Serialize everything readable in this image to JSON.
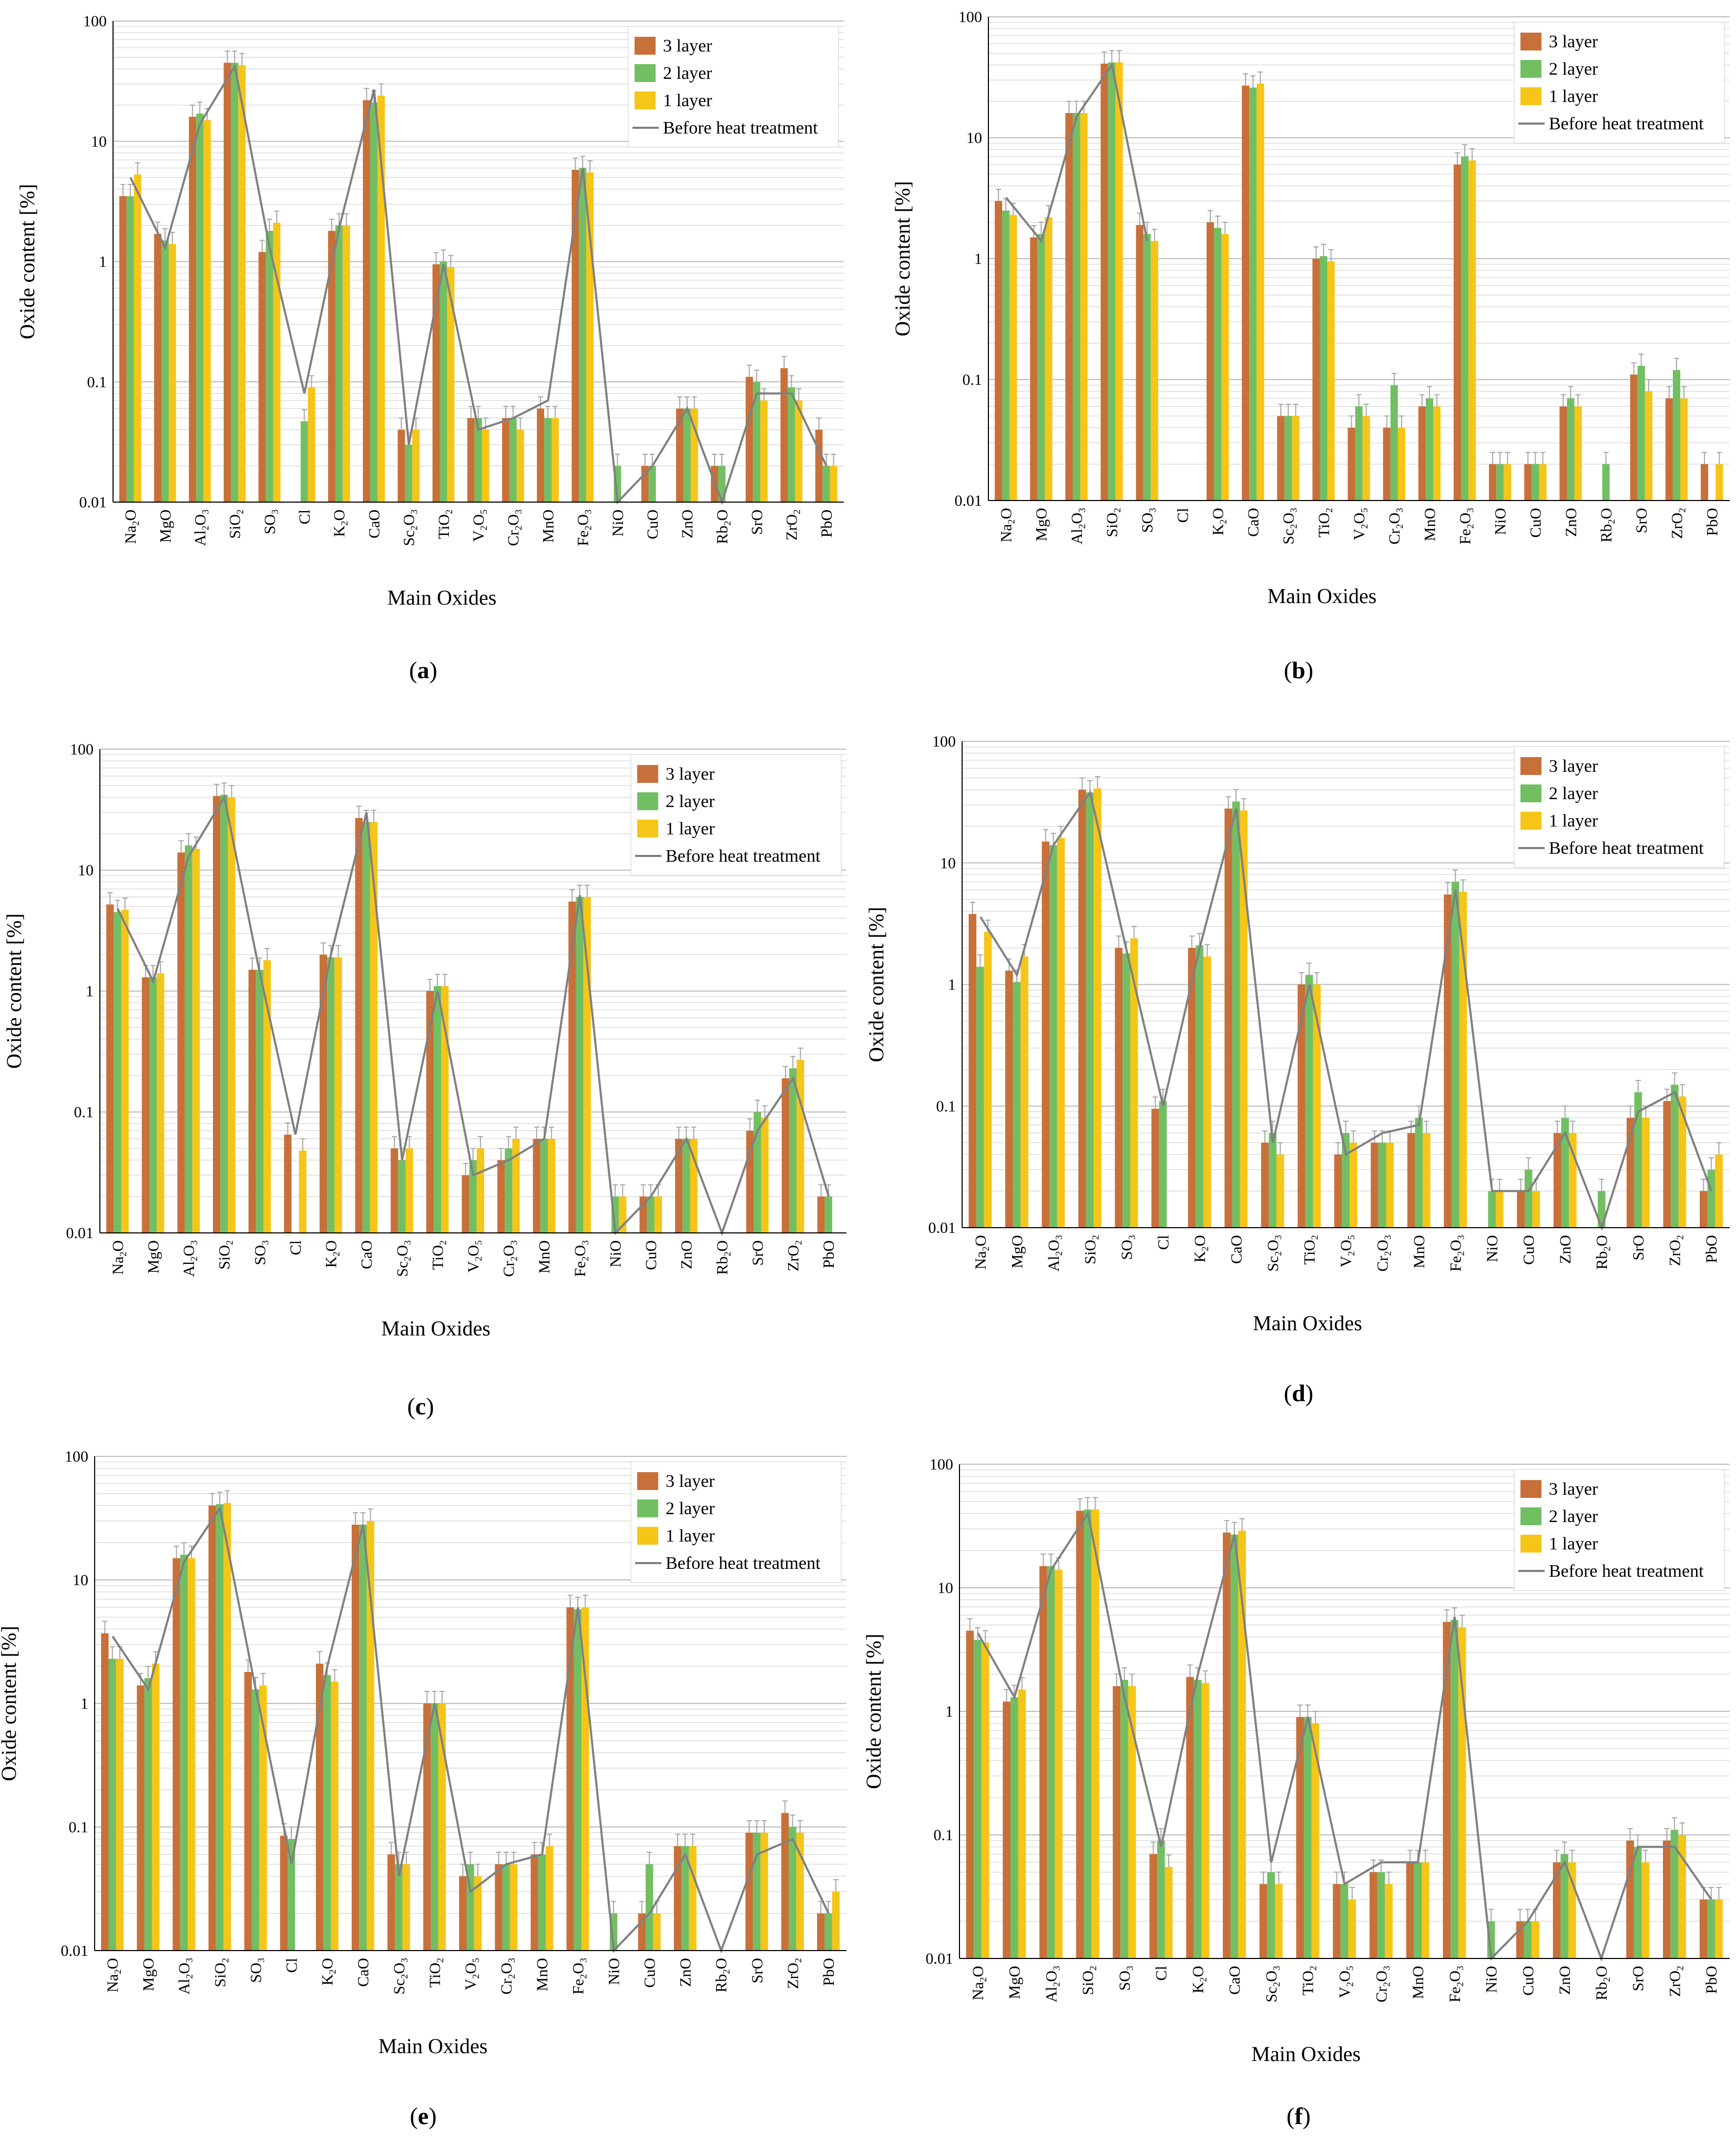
{
  "figure": {
    "panels": [
      {
        "id": "a",
        "label": "(a)",
        "letter": "a"
      },
      {
        "id": "b",
        "label": "(b)",
        "letter": "b"
      },
      {
        "id": "c",
        "label": "(c)",
        "letter": "c"
      },
      {
        "id": "d",
        "label": "(d)",
        "letter": "d"
      },
      {
        "id": "e",
        "label": "(e)",
        "letter": "e"
      },
      {
        "id": "f",
        "label": "(f)",
        "letter": "f"
      }
    ]
  },
  "colors": {
    "layer3": "#c8703a",
    "layer2": "#72bf63",
    "layer1": "#f5c518",
    "line": "#808080",
    "error": "#a6a6a6",
    "grid": "#dcdcdc"
  },
  "chart_data": [
    {
      "panel": "a",
      "type": "bar",
      "log_scale": true,
      "xlabel": "Main Oxides",
      "ylabel": "Oxide content [%]",
      "ylim": [
        0.01,
        100
      ],
      "y_ticks": [
        "0.01",
        "0.1",
        "1",
        "10",
        "100"
      ],
      "categories": [
        "Na2O",
        "MgO",
        "Al2O3",
        "SiO2",
        "SO3",
        "Cl",
        "K2O",
        "CaO",
        "Sc2O3",
        "TiO2",
        "V2O5",
        "Cr2O3",
        "MnO",
        "Fe2O3",
        "NiO",
        "CuO",
        "ZnO",
        "Rb2O",
        "SrO",
        "ZrO2",
        "PbO"
      ],
      "legend": [
        "3 layer",
        "2 layer",
        "1 layer",
        "Before heat treatment"
      ],
      "series": [
        {
          "name": "3 layer",
          "values": [
            3.5,
            1.7,
            16,
            45,
            1.2,
            null,
            1.8,
            22,
            0.04,
            0.95,
            0.05,
            0.05,
            0.06,
            5.8,
            null,
            0.02,
            0.06,
            0.02,
            0.11,
            0.13,
            0.04
          ]
        },
        {
          "name": "2 layer",
          "values": [
            3.5,
            1.5,
            17,
            45,
            1.8,
            0.047,
            2.0,
            21,
            0.03,
            1.0,
            0.05,
            0.05,
            0.05,
            6.0,
            0.02,
            0.02,
            0.06,
            0.02,
            0.1,
            0.09,
            0.02
          ]
        },
        {
          "name": "1 layer",
          "values": [
            5.3,
            1.4,
            15,
            43,
            2.1,
            0.09,
            2.0,
            24,
            0.04,
            0.9,
            0.04,
            0.04,
            0.05,
            5.5,
            null,
            null,
            0.06,
            null,
            0.07,
            0.07,
            0.02
          ]
        },
        {
          "name": "Before heat treatment",
          "values": [
            5.0,
            1.3,
            14,
            42,
            1.3,
            0.08,
            1.9,
            27,
            0.03,
            0.95,
            0.04,
            0.05,
            0.07,
            6.0,
            0.01,
            0.02,
            0.06,
            0.01,
            0.08,
            0.08,
            0.02
          ]
        }
      ]
    },
    {
      "panel": "b",
      "type": "bar",
      "log_scale": true,
      "xlabel": "Main Oxides",
      "ylabel": "Oxide content [%]",
      "ylim": [
        0.01,
        100
      ],
      "y_ticks": [
        "0.01",
        "0.1",
        "1",
        "10",
        "100"
      ],
      "categories": [
        "Na2O",
        "MgO",
        "Al2O3",
        "SiO2",
        "SO3",
        "Cl",
        "K2O",
        "CaO",
        "Sc2O3",
        "TiO2",
        "V2O5",
        "Cr2O3",
        "MnO",
        "Fe2O3",
        "NiO",
        "CuO",
        "ZnO",
        "Rb2O",
        "SrO",
        "ZrO2",
        "PbO"
      ],
      "legend": [
        "3 layer",
        "2 layer",
        "1 layer",
        "Before heat treatment"
      ],
      "series": [
        {
          "name": "3 layer",
          "values": [
            3.0,
            1.5,
            16,
            41,
            1.9,
            null,
            2.0,
            27,
            0.05,
            1.0,
            0.04,
            0.04,
            0.06,
            6.0,
            0.02,
            0.02,
            0.06,
            null,
            0.11,
            0.07,
            0.02
          ]
        },
        {
          "name": "2 layer",
          "values": [
            2.5,
            1.6,
            16,
            42,
            1.6,
            null,
            1.8,
            26,
            0.05,
            1.05,
            0.06,
            0.09,
            0.07,
            7.0,
            0.02,
            0.02,
            0.07,
            0.02,
            0.13,
            0.12,
            null
          ]
        },
        {
          "name": "1 layer",
          "values": [
            2.3,
            2.2,
            16,
            42,
            1.4,
            null,
            1.6,
            28,
            0.05,
            0.95,
            0.05,
            0.04,
            0.06,
            6.5,
            0.02,
            0.02,
            0.06,
            null,
            0.08,
            0.07,
            0.02
          ]
        },
        {
          "name": "Before heat treatment",
          "values": [
            3.2,
            1.4,
            15,
            40,
            1.4,
            null,
            2.0,
            30,
            0.06,
            1.0,
            0.04,
            0.04,
            0.06,
            6.0,
            0.01,
            0.02,
            0.06,
            0.01,
            0.08,
            0.08,
            0.02
          ]
        }
      ]
    },
    {
      "panel": "c",
      "type": "bar",
      "log_scale": true,
      "xlabel": "Main Oxides",
      "ylabel": "Oxide content [%]",
      "ylim": [
        0.01,
        100
      ],
      "y_ticks": [
        "0.01",
        "0.1",
        "1",
        "10",
        "100"
      ],
      "categories": [
        "Na2O",
        "MgO",
        "Al2O3",
        "SiO2",
        "SO3",
        "Cl",
        "K2O",
        "CaO",
        "Sc2O3",
        "TiO2",
        "V2O5",
        "Cr2O3",
        "MnO",
        "Fe2O3",
        "NiO",
        "CuO",
        "ZnO",
        "Rb2O",
        "SrO",
        "ZrO2",
        "PbO"
      ],
      "legend": [
        "3 layer",
        "2 layer",
        "1 layer",
        "Before heat treatment"
      ],
      "series": [
        {
          "name": "3 layer",
          "values": [
            5.2,
            1.3,
            14,
            41,
            1.5,
            0.065,
            2.0,
            27,
            0.05,
            1.0,
            0.03,
            0.04,
            0.06,
            5.5,
            null,
            0.02,
            0.06,
            null,
            0.07,
            0.19,
            0.02
          ]
        },
        {
          "name": "2 layer",
          "values": [
            4.5,
            1.3,
            16,
            42,
            1.5,
            null,
            1.9,
            25,
            0.04,
            1.1,
            0.04,
            0.05,
            0.06,
            6.0,
            0.02,
            0.02,
            0.06,
            null,
            0.1,
            0.23,
            0.02
          ]
        },
        {
          "name": "1 layer",
          "values": [
            4.7,
            1.4,
            15,
            40,
            1.8,
            0.048,
            1.9,
            25,
            0.05,
            1.1,
            0.05,
            0.06,
            0.06,
            6.0,
            0.02,
            0.02,
            0.06,
            null,
            0.09,
            0.27,
            null
          ]
        },
        {
          "name": "Before heat treatment",
          "values": [
            4.8,
            1.2,
            13,
            40,
            1.4,
            0.065,
            2.0,
            30,
            0.04,
            1.0,
            0.03,
            0.04,
            0.06,
            6.2,
            0.01,
            0.02,
            0.06,
            0.01,
            0.07,
            0.19,
            0.02
          ]
        }
      ]
    },
    {
      "panel": "d",
      "type": "bar",
      "log_scale": true,
      "xlabel": "Main Oxides",
      "ylabel": "Oxide content [%]",
      "ylim": [
        0.01,
        100
      ],
      "y_ticks": [
        "0.01",
        "0.1",
        "1",
        "10",
        "100"
      ],
      "categories": [
        "Na2O",
        "MgO",
        "Al2O3",
        "SiO2",
        "SO3",
        "Cl",
        "K2O",
        "CaO",
        "Sc2O3",
        "TiO2",
        "V2O5",
        "Cr2O3",
        "MnO",
        "Fe2O3",
        "NiO",
        "CuO",
        "ZnO",
        "Rb2O",
        "SrO",
        "ZrO2",
        "PbO"
      ],
      "legend": [
        "3 layer",
        "2 layer",
        "1 layer",
        "Before heat treatment"
      ],
      "series": [
        {
          "name": "3 layer",
          "values": [
            3.8,
            1.3,
            15,
            40,
            2.0,
            0.095,
            2.0,
            28,
            0.05,
            1.0,
            0.04,
            0.05,
            0.06,
            5.5,
            null,
            0.02,
            0.06,
            null,
            0.08,
            0.11,
            0.02
          ]
        },
        {
          "name": "2 layer",
          "values": [
            1.4,
            1.05,
            14,
            38,
            1.8,
            0.11,
            2.1,
            32,
            0.06,
            1.2,
            0.06,
            0.05,
            0.08,
            7.0,
            0.02,
            0.03,
            0.08,
            0.02,
            0.13,
            0.15,
            0.03
          ]
        },
        {
          "name": "1 layer",
          "values": [
            2.7,
            1.7,
            16,
            41,
            2.4,
            null,
            1.7,
            27,
            0.04,
            1.0,
            0.05,
            0.05,
            0.06,
            5.8,
            0.02,
            0.02,
            0.06,
            null,
            0.08,
            0.12,
            0.04
          ]
        },
        {
          "name": "Before heat treatment",
          "values": [
            3.6,
            1.2,
            14,
            38,
            1.9,
            0.1,
            2.0,
            28,
            0.05,
            1.0,
            0.04,
            0.06,
            0.07,
            6.0,
            0.02,
            0.02,
            0.06,
            0.01,
            0.09,
            0.13,
            0.02
          ]
        }
      ]
    },
    {
      "panel": "e",
      "type": "bar",
      "log_scale": true,
      "xlabel": "Main Oxides",
      "ylabel": "Oxide content [%]",
      "ylim": [
        0.01,
        100
      ],
      "y_ticks": [
        "0.01",
        "0.1",
        "1",
        "10",
        "100"
      ],
      "categories": [
        "Na2O",
        "MgO",
        "Al2O3",
        "SiO2",
        "SO3",
        "Cl",
        "K2O",
        "CaO",
        "Sc2O3",
        "TiO2",
        "V2O5",
        "Cr2O3",
        "MnO",
        "Fe2O3",
        "NiO",
        "CuO",
        "ZnO",
        "Rb2O",
        "SrO",
        "ZrO2",
        "PbO"
      ],
      "legend": [
        "3 layer",
        "2 layer",
        "1 layer",
        "Before heat treatment"
      ],
      "series": [
        {
          "name": "3 layer",
          "values": [
            3.7,
            1.4,
            15,
            40,
            1.8,
            0.085,
            2.1,
            28,
            0.06,
            1.0,
            0.04,
            0.05,
            0.06,
            6.0,
            null,
            0.02,
            0.07,
            null,
            0.09,
            0.13,
            0.02
          ]
        },
        {
          "name": "2 layer",
          "values": [
            2.3,
            1.6,
            16,
            41,
            1.3,
            0.08,
            1.7,
            28,
            0.05,
            1.0,
            0.05,
            0.05,
            0.06,
            5.8,
            0.02,
            0.05,
            0.07,
            null,
            0.09,
            0.1,
            0.02
          ]
        },
        {
          "name": "1 layer",
          "values": [
            2.3,
            2.1,
            15,
            42,
            1.4,
            null,
            1.5,
            30,
            0.05,
            1.0,
            0.04,
            0.05,
            0.07,
            6.0,
            null,
            0.02,
            0.07,
            null,
            0.09,
            0.09,
            0.03
          ]
        },
        {
          "name": "Before heat treatment",
          "values": [
            3.5,
            1.3,
            14,
            38,
            1.3,
            0.05,
            2.0,
            28,
            0.04,
            1.0,
            0.03,
            0.05,
            0.06,
            6.0,
            0.01,
            0.02,
            0.06,
            0.01,
            0.06,
            0.08,
            0.02
          ]
        }
      ]
    },
    {
      "panel": "f",
      "type": "bar",
      "log_scale": true,
      "xlabel": "Main Oxides",
      "ylabel": "Oxide content [%]",
      "ylim": [
        0.01,
        100
      ],
      "y_ticks": [
        "0.01",
        "0.1",
        "1",
        "10",
        "100"
      ],
      "categories": [
        "Na2O",
        "MgO",
        "Al2O3",
        "SiO2",
        "SO3",
        "Cl",
        "K2O",
        "CaO",
        "Sc2O3",
        "TiO2",
        "V2O5",
        "Cr2O3",
        "MnO",
        "Fe2O3",
        "NiO",
        "CuO",
        "ZnO",
        "Rb2O",
        "SrO",
        "ZrO2",
        "PbO"
      ],
      "legend": [
        "3 layer",
        "2 layer",
        "1 layer",
        "Before heat treatment"
      ],
      "series": [
        {
          "name": "3 layer",
          "values": [
            4.5,
            1.2,
            15,
            42,
            1.6,
            0.07,
            1.9,
            28,
            0.04,
            0.9,
            0.04,
            0.05,
            0.06,
            5.3,
            null,
            0.02,
            0.06,
            null,
            0.09,
            0.09,
            0.03
          ]
        },
        {
          "name": "2 layer",
          "values": [
            3.8,
            1.3,
            15,
            43,
            1.8,
            0.09,
            1.8,
            27,
            0.05,
            0.9,
            0.04,
            0.05,
            0.06,
            5.5,
            0.02,
            0.02,
            0.07,
            null,
            0.08,
            0.11,
            0.03
          ]
        },
        {
          "name": "1 layer",
          "values": [
            3.6,
            1.5,
            14,
            43,
            1.6,
            0.055,
            1.7,
            29,
            0.04,
            0.8,
            0.03,
            0.04,
            0.06,
            4.8,
            null,
            0.02,
            0.06,
            null,
            0.06,
            0.1,
            0.03
          ]
        },
        {
          "name": "Before heat treatment",
          "values": [
            4.3,
            1.3,
            14,
            40,
            1.3,
            0.08,
            2.0,
            27,
            0.06,
            0.9,
            0.04,
            0.06,
            0.06,
            5.8,
            0.01,
            0.02,
            0.06,
            0.01,
            0.08,
            0.08,
            0.03
          ]
        }
      ]
    }
  ]
}
